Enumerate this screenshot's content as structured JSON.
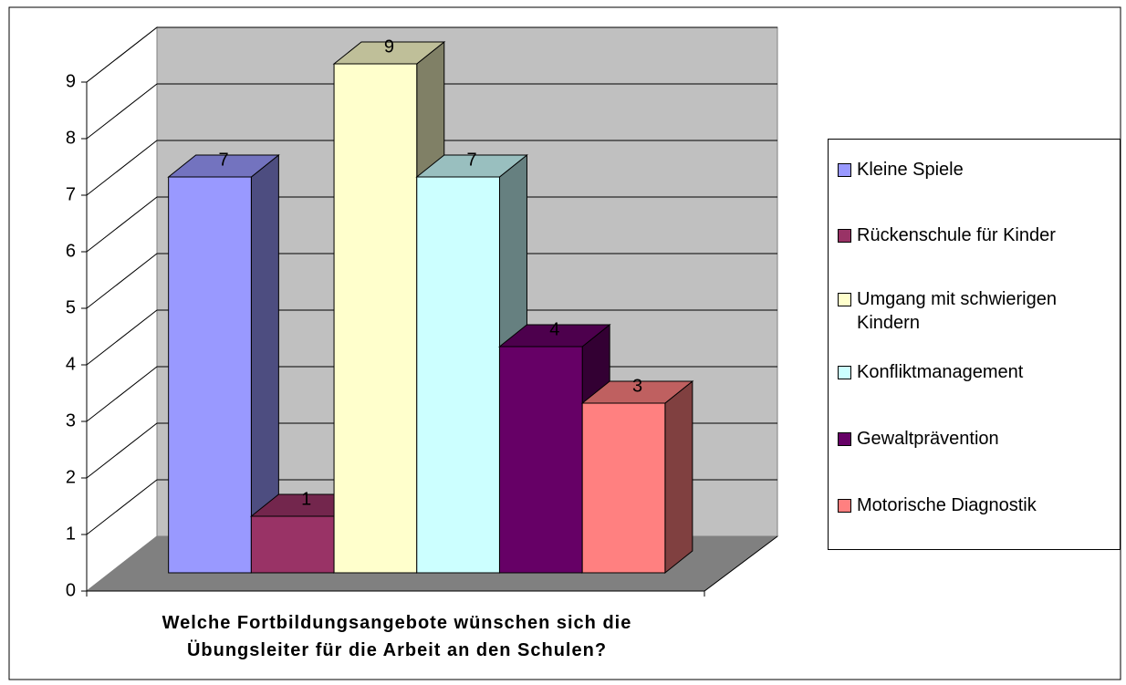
{
  "chart_data": {
    "type": "bar3d",
    "title": "Welche Fortbildungsangebote wünschen sich die Übungsleiter für die Arbeit an den Schulen?",
    "series": [
      {
        "name": "Kleine Spiele",
        "color": "#9999ff",
        "values": [
          7
        ]
      },
      {
        "name": "Rückenschule für Kinder",
        "color": "#993366",
        "values": [
          1
        ]
      },
      {
        "name": "Umgang mit schwierigen Kindern",
        "color": "#ffffcc",
        "values": [
          9
        ]
      },
      {
        "name": "Konfliktmanagement",
        "color": "#ccffff",
        "values": [
          7
        ]
      },
      {
        "name": "Gewaltprävention",
        "color": "#660066",
        "values": [
          4
        ]
      },
      {
        "name": "Motorische Diagnostik",
        "color": "#ff8080",
        "values": [
          3
        ]
      }
    ],
    "ylim": [
      0,
      9
    ],
    "yticks": [
      0,
      1,
      2,
      3,
      4,
      5,
      6,
      7,
      8,
      9
    ],
    "grid": true,
    "legend": "right"
  }
}
